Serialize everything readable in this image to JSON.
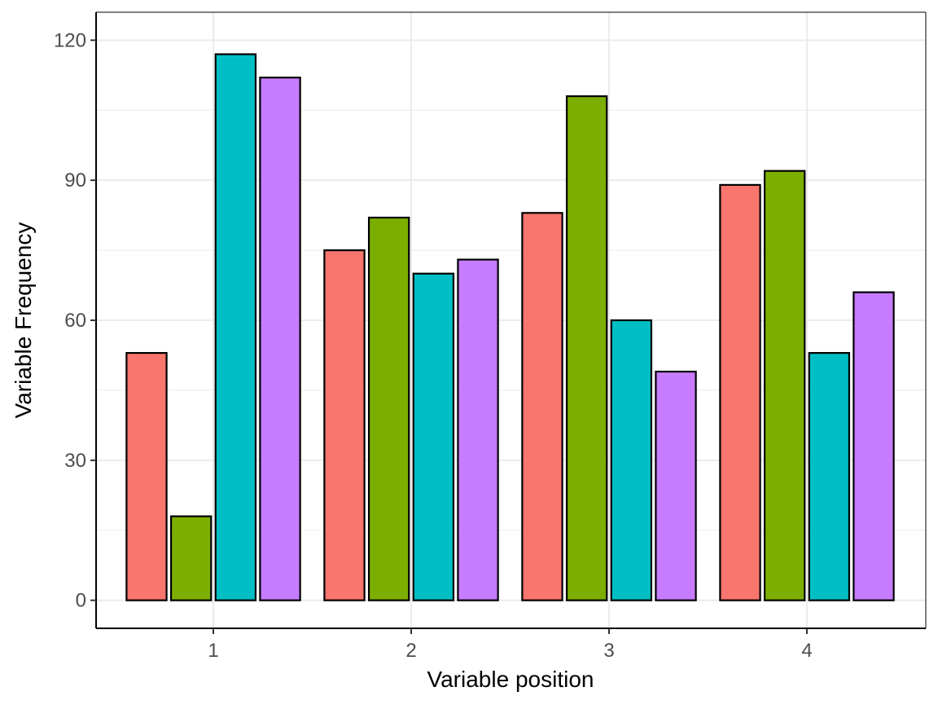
{
  "chart_data": {
    "type": "bar",
    "categories": [
      "1",
      "2",
      "3",
      "4"
    ],
    "series": [
      {
        "color": "#F8766D",
        "values": [
          53,
          75,
          83,
          89
        ]
      },
      {
        "color": "#7CAE00",
        "values": [
          18,
          82,
          108,
          92
        ]
      },
      {
        "color": "#00BFC4",
        "values": [
          117,
          70,
          60,
          53
        ]
      },
      {
        "color": "#C77CFF",
        "values": [
          112,
          73,
          49,
          66
        ]
      }
    ],
    "title": "",
    "xlabel": "Variable position",
    "ylabel": "Variable Frequency",
    "ylim": [
      -6,
      126
    ],
    "yticks": [
      0,
      30,
      60,
      90,
      120
    ],
    "grid": true,
    "legend": "none"
  }
}
